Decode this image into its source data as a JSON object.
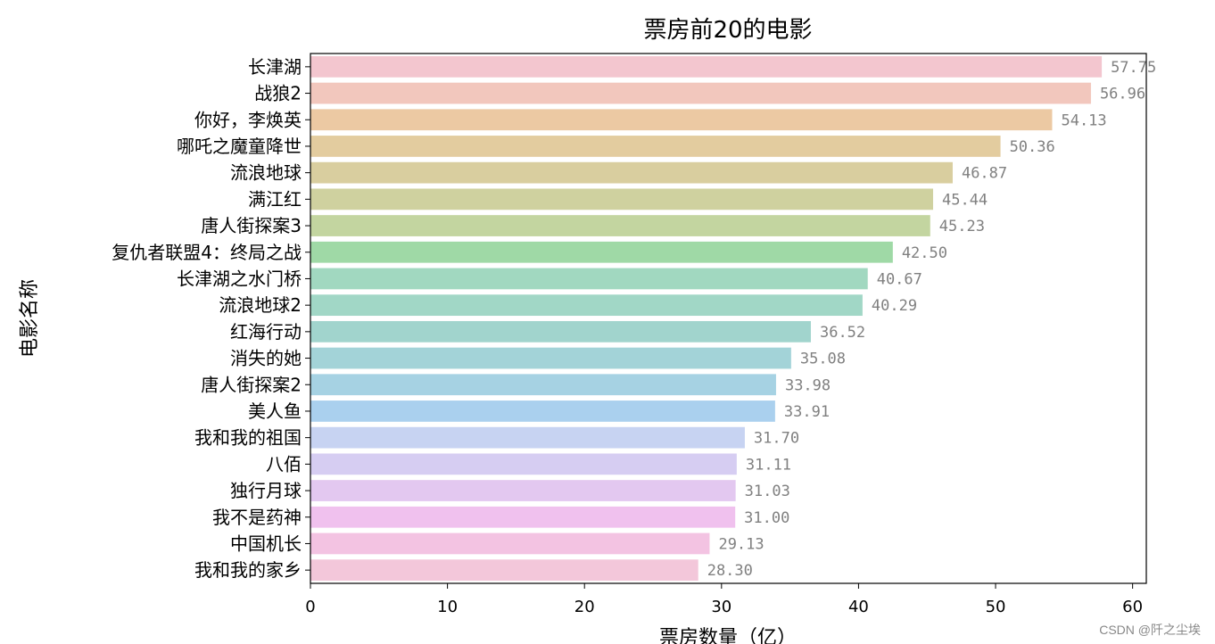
{
  "chart_data": {
    "type": "bar",
    "orientation": "horizontal",
    "title": "票房前20的电影",
    "xlabel": "票房数量（亿）",
    "ylabel": "电影名称",
    "xlim": [
      0,
      61
    ],
    "xticks": [
      0,
      10,
      20,
      30,
      40,
      50,
      60
    ],
    "grid": false,
    "categories": [
      "长津湖",
      "战狼2",
      "你好，李焕英",
      "哪吒之魔童降世",
      "流浪地球",
      "满江红",
      "唐人街探案3",
      "复仇者联盟4：终局之战",
      "长津湖之水门桥",
      "流浪地球2",
      "红海行动",
      "消失的她",
      "唐人街探案2",
      "美人鱼",
      "我和我的祖国",
      "八佰",
      "独行月球",
      "我不是药神",
      "中国机长",
      "我和我的家乡"
    ],
    "values": [
      57.75,
      56.96,
      54.13,
      50.36,
      46.87,
      45.44,
      45.23,
      42.5,
      40.67,
      40.29,
      36.52,
      35.08,
      33.98,
      33.91,
      31.7,
      31.11,
      31.03,
      31.0,
      29.13,
      28.3
    ],
    "value_labels": [
      "57.75",
      "56.96",
      "54.13",
      "50.36",
      "46.87",
      "45.44",
      "45.23",
      "42.50",
      "40.67",
      "40.29",
      "36.52",
      "35.08",
      "33.98",
      "33.91",
      "31.70",
      "31.11",
      "31.03",
      "31.00",
      "29.13",
      "28.30"
    ],
    "colors": [
      "#f3c6cf",
      "#f2c7bd",
      "#ecc9a3",
      "#e3cc9f",
      "#d9ce9f",
      "#cfd19f",
      "#c3d5a0",
      "#9fd9a6",
      "#a1d8c0",
      "#a1d7c6",
      "#a1d4cd",
      "#a3d3d8",
      "#a6d2e3",
      "#aad0ee",
      "#c7d3f2",
      "#d6cdf2",
      "#e3c8f0",
      "#f0c1ee",
      "#f3c3e2",
      "#f3c7da"
    ]
  },
  "watermark": "CSDN @阡之尘埃"
}
